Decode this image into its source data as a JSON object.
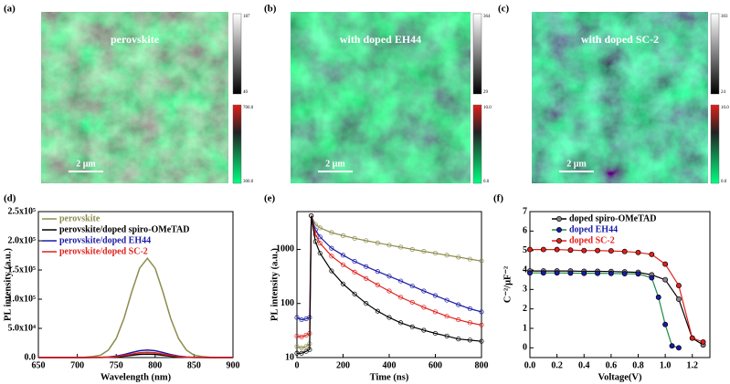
{
  "images": [
    {
      "label": "(a)",
      "title": "perovskite",
      "scale_bar": "2 μm",
      "colorbars": [
        [
          "187",
          "40"
        ],
        [
          "700.0",
          "300.0"
        ]
      ]
    },
    {
      "label": "(b)",
      "title": "with doped EH44",
      "scale_bar": "2 μm",
      "colorbars": [
        [
          "364",
          "29"
        ],
        [
          "10.0",
          "0.0"
        ]
      ]
    },
    {
      "label": "(c)",
      "title": "with doped SC-2",
      "scale_bar": "2 μm",
      "colorbars": [
        [
          "303",
          "24"
        ],
        [
          "10.0",
          "0.0"
        ]
      ]
    }
  ],
  "chart_data": [
    {
      "type": "line",
      "label": "(d)",
      "x_label": "Wavelength (nm)",
      "y_label": "PL intensity (a.u.)",
      "x": [
        650,
        660,
        670,
        680,
        690,
        700,
        710,
        720,
        730,
        740,
        750,
        760,
        770,
        780,
        790,
        800,
        810,
        820,
        830,
        840,
        850,
        860,
        870,
        880,
        890,
        900
      ],
      "xlim": [
        650,
        900
      ],
      "xticks": [
        650,
        700,
        750,
        800,
        850,
        900
      ],
      "ylim": [
        0,
        250000
      ],
      "yticks": [
        {
          "value": 0,
          "label": "0.0"
        },
        {
          "value": 50000,
          "label": "5.0x10⁴"
        },
        {
          "value": 100000,
          "label": "1.0x10⁵"
        },
        {
          "value": 150000,
          "label": "1.5x10⁵"
        },
        {
          "value": 200000,
          "label": "2.0x10⁵"
        },
        {
          "value": 250000,
          "label": "2.5x10⁵"
        }
      ],
      "legend": "upper left",
      "series": [
        {
          "name": "perovskite",
          "color": "#8c8c4e",
          "values": [
            0,
            0,
            0,
            0,
            0,
            200,
            600,
            1700,
            4100,
            12900,
            32600,
            67100,
            112500,
            153000,
            170000,
            153000,
            112500,
            67100,
            32600,
            12900,
            4100,
            1700,
            600,
            200,
            0,
            0
          ]
        },
        {
          "name": "perovskite/doped spiro-OMeTAD",
          "color": "#000000",
          "values": [
            0,
            0,
            0,
            0,
            0,
            0,
            0,
            100,
            150,
            450,
            1150,
            2350,
            3950,
            5400,
            6000,
            5400,
            3950,
            2350,
            1150,
            450,
            150,
            100,
            0,
            0,
            0,
            0
          ]
        },
        {
          "name": "perovskite/doped EH44",
          "color": "#1a1aa6",
          "values": [
            0,
            0,
            0,
            0,
            0,
            0,
            50,
            130,
            310,
            990,
            2490,
            5130,
            8600,
            11700,
            13000,
            11700,
            8600,
            5130,
            2490,
            990,
            310,
            130,
            50,
            0,
            0,
            0
          ]
        },
        {
          "name": "perovskite/doped SC-2",
          "color": "#e0201b",
          "values": [
            0,
            0,
            0,
            0,
            0,
            0,
            30,
            90,
            220,
            680,
            1730,
            3550,
            5960,
            8100,
            9000,
            8100,
            5960,
            3550,
            1730,
            680,
            220,
            90,
            30,
            0,
            0,
            0
          ]
        }
      ]
    },
    {
      "type": "line",
      "label": "(e)",
      "x_label": "Time (ns)",
      "y_label": "PL intensity (a.u.)",
      "log_y": true,
      "markers": "hollow",
      "x": [
        0,
        20,
        40,
        55,
        62,
        80,
        100,
        150,
        200,
        250,
        300,
        350,
        400,
        450,
        500,
        550,
        600,
        650,
        700,
        750,
        800
      ],
      "xlim": [
        0,
        800
      ],
      "xticks": [
        0,
        200,
        400,
        600,
        800
      ],
      "ylim": [
        10,
        5000
      ],
      "yticks": [
        10,
        100,
        1000
      ],
      "series": [
        {
          "color": "#8c8c4e",
          "values": [
            16,
            15,
            16,
            18,
            4200,
            2900,
            2500,
            2050,
            1800,
            1600,
            1450,
            1320,
            1200,
            1100,
            1000,
            920,
            850,
            780,
            720,
            660,
            610
          ]
        },
        {
          "color": "#1a1aa6",
          "values": [
            55,
            50,
            52,
            55,
            4200,
            2300,
            1700,
            1050,
            780,
            600,
            480,
            390,
            320,
            260,
            210,
            170,
            140,
            115,
            95,
            80,
            70
          ]
        },
        {
          "color": "#e0201b",
          "values": [
            25,
            24,
            26,
            28,
            4200,
            1900,
            1300,
            750,
            520,
            380,
            290,
            220,
            170,
            130,
            105,
            85,
            70,
            58,
            50,
            44,
            40
          ]
        },
        {
          "color": "#000000",
          "values": [
            12,
            12,
            13,
            14,
            4200,
            1400,
            850,
            400,
            230,
            150,
            100,
            72,
            55,
            44,
            37,
            32,
            28,
            25,
            22,
            21,
            20
          ]
        }
      ]
    },
    {
      "type": "line",
      "label": "(f)",
      "x_label": "Voltage(V)",
      "y_label": "C⁻²/μF⁻²",
      "markers": "filled",
      "xlim": [
        0,
        1.33
      ],
      "xticks": [
        {
          "value": 0,
          "label": "0.0"
        },
        {
          "value": 0.2,
          "label": "0.2"
        },
        {
          "value": 0.4,
          "label": "0.4"
        },
        {
          "value": 0.6,
          "label": "0.6"
        },
        {
          "value": 0.8,
          "label": "0.8"
        },
        {
          "value": 1,
          "label": "1.0"
        },
        {
          "value": 1.2,
          "label": "1.2"
        }
      ],
      "ylim": [
        -0.5,
        7
      ],
      "yticks": [
        0,
        1,
        2,
        3,
        4,
        5,
        6,
        7
      ],
      "legend": "upper left",
      "series": [
        {
          "name": "doped spiro-OMeTAD",
          "color": "#000000",
          "marker_color": "#8f7f8f",
          "x": [
            0,
            0.1,
            0.2,
            0.3,
            0.4,
            0.5,
            0.6,
            0.7,
            0.8,
            0.9,
            1.0,
            1.1,
            1.2,
            1.28
          ],
          "values": [
            3.95,
            3.95,
            3.95,
            3.95,
            3.93,
            3.93,
            3.92,
            3.9,
            3.88,
            3.75,
            3.5,
            2.5,
            0.5,
            0.15
          ]
        },
        {
          "name": "doped EH44",
          "color": "#1f8a4a",
          "marker_color": "#1a1aa6",
          "x": [
            0,
            0.1,
            0.2,
            0.3,
            0.4,
            0.5,
            0.6,
            0.7,
            0.8,
            0.9,
            0.95,
            1.0,
            1.05,
            1.1
          ],
          "values": [
            3.85,
            3.85,
            3.85,
            3.84,
            3.83,
            3.83,
            3.82,
            3.81,
            3.8,
            3.6,
            2.6,
            1.2,
            0.1,
            0.0
          ]
        },
        {
          "name": "doped SC-2",
          "color": "#e0201b",
          "marker_color": "#e0201b",
          "x": [
            0,
            0.1,
            0.2,
            0.3,
            0.4,
            0.5,
            0.6,
            0.7,
            0.8,
            0.9,
            1.0,
            1.1,
            1.2,
            1.28
          ],
          "values": [
            5.05,
            5.05,
            5.05,
            5.02,
            5.0,
            5.0,
            4.98,
            4.95,
            4.9,
            4.8,
            4.3,
            3.2,
            0.5,
            0.3
          ]
        }
      ]
    }
  ]
}
